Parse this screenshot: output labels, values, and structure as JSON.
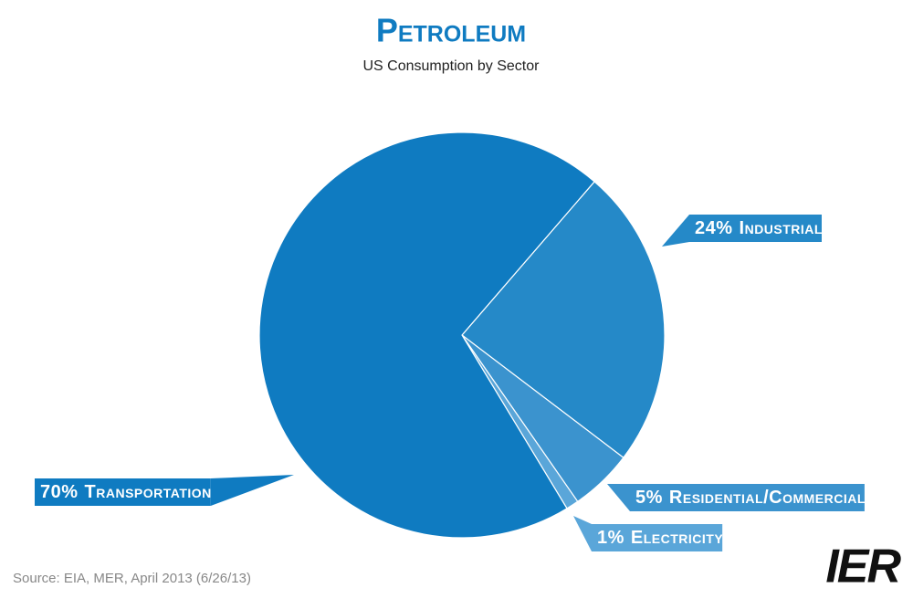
{
  "chart_data": {
    "type": "pie",
    "title": "Petroleum",
    "subtitle": "US Consumption by Sector",
    "categories": [
      "Industrial",
      "Residential/Commercial",
      "Electricity",
      "Transportation"
    ],
    "values": [
      24,
      5,
      1,
      70
    ],
    "value_labels": [
      "24%",
      "5%",
      "1%",
      "70%"
    ],
    "colors": [
      "#2589c8",
      "#3b93ce",
      "#5aa6d9",
      "#0f7bc1"
    ],
    "source": "Source: EIA, MER, April 2013 (6/26/13)",
    "logo": "IER"
  }
}
